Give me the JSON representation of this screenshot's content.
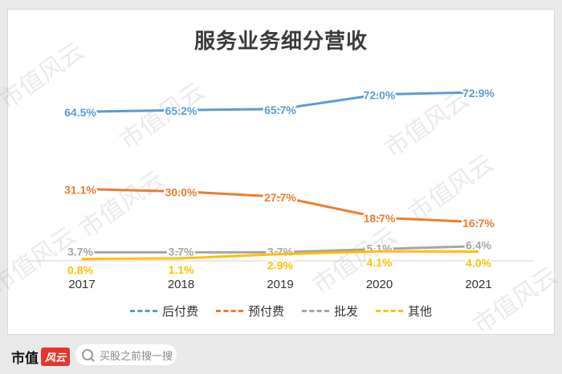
{
  "watermark": "市值风云",
  "chart_data": {
    "type": "line",
    "title": "服务业务细分营收",
    "categories": [
      "2017",
      "2018",
      "2019",
      "2020",
      "2021"
    ],
    "ylim": [
      0,
      80
    ],
    "series": [
      {
        "name": "后付费",
        "color": "#5b9bd5",
        "values": [
          64.5,
          65.2,
          65.7,
          72.0,
          72.9
        ],
        "labels": [
          "64.5%",
          "65.2%",
          "65.7%",
          "72.0%",
          "72.9%"
        ]
      },
      {
        "name": "预付费",
        "color": "#ed7d31",
        "values": [
          31.1,
          30.0,
          27.7,
          18.7,
          16.7
        ],
        "labels": [
          "31.1%",
          "30.0%",
          "27.7%",
          "18.7%",
          "16.7%"
        ]
      },
      {
        "name": "批发",
        "color": "#a5a5a5",
        "values": [
          3.7,
          3.7,
          3.7,
          5.1,
          6.4
        ],
        "labels": [
          "3.7%",
          "3.7%",
          "3.7%",
          "5.1%",
          "6.4%"
        ]
      },
      {
        "name": "其他",
        "color": "#ffc000",
        "values": [
          0.8,
          1.1,
          2.9,
          4.1,
          4.0
        ],
        "labels": [
          "0.8%",
          "1.1%",
          "2.9%",
          "4.1%",
          "4.0%"
        ]
      }
    ],
    "legend": "bottom"
  },
  "footer": {
    "brand": "市值",
    "brand_mark": "风云",
    "search_placeholder": "买股之前搜一搜"
  }
}
